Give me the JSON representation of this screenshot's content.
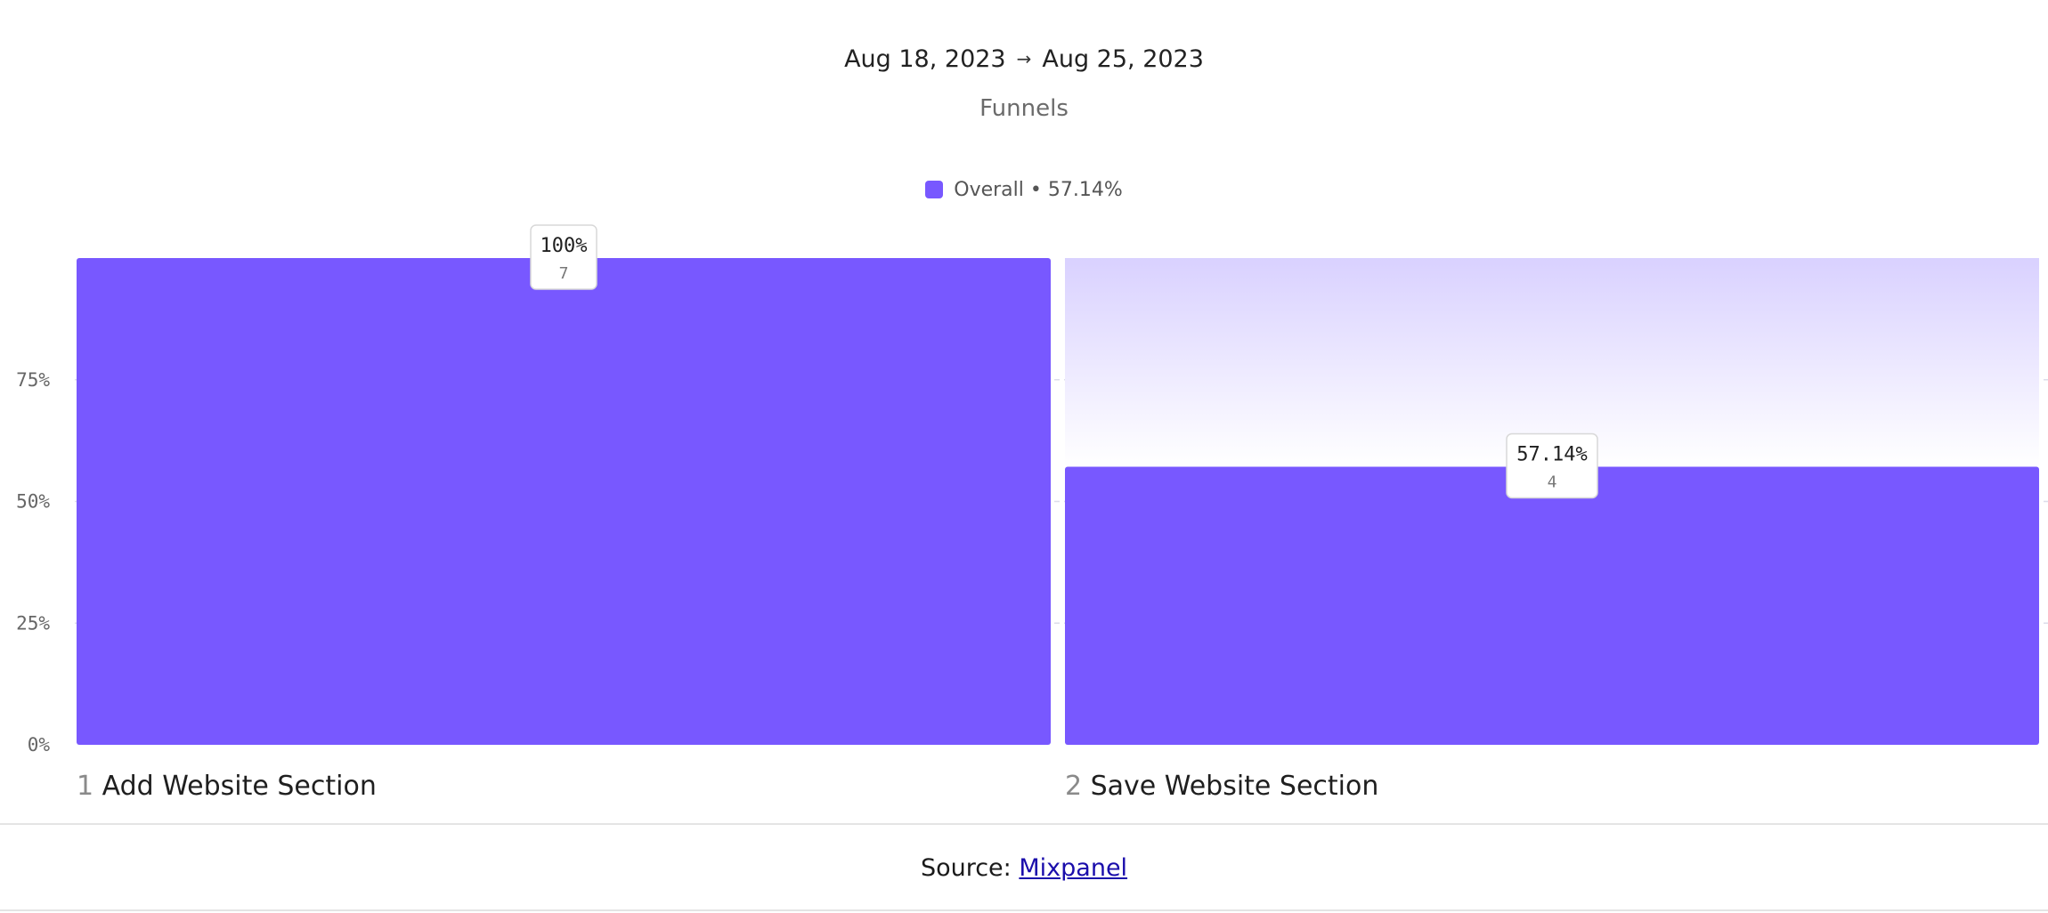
{
  "header": {
    "date_start": "Aug 18, 2023",
    "date_arrow": "→",
    "date_end": "Aug 25, 2023",
    "subtitle": "Funnels"
  },
  "legend": {
    "label": "Overall • 57.14%",
    "color": "#7858ff"
  },
  "footer": {
    "source_prefix": "Source:",
    "source_link": "Mixpanel"
  },
  "chart_data": {
    "type": "bar",
    "categories": [
      "Add Website Section",
      "Save Website Section"
    ],
    "step_numbers": [
      "1",
      "2"
    ],
    "series": [
      {
        "name": "Overall",
        "values": [
          100,
          57.14
        ],
        "counts": [
          7,
          4
        ],
        "labels": [
          "100%",
          "57.14%"
        ]
      }
    ],
    "ylim": [
      0,
      100
    ],
    "yticks": [
      0,
      25,
      50,
      75
    ],
    "ytick_labels": [
      "0%",
      "25%",
      "50%",
      "75%"
    ],
    "grid": true,
    "legend_position": "top-center",
    "bar_color": "#7858ff",
    "dropoff_color": "#d9d1ff"
  }
}
